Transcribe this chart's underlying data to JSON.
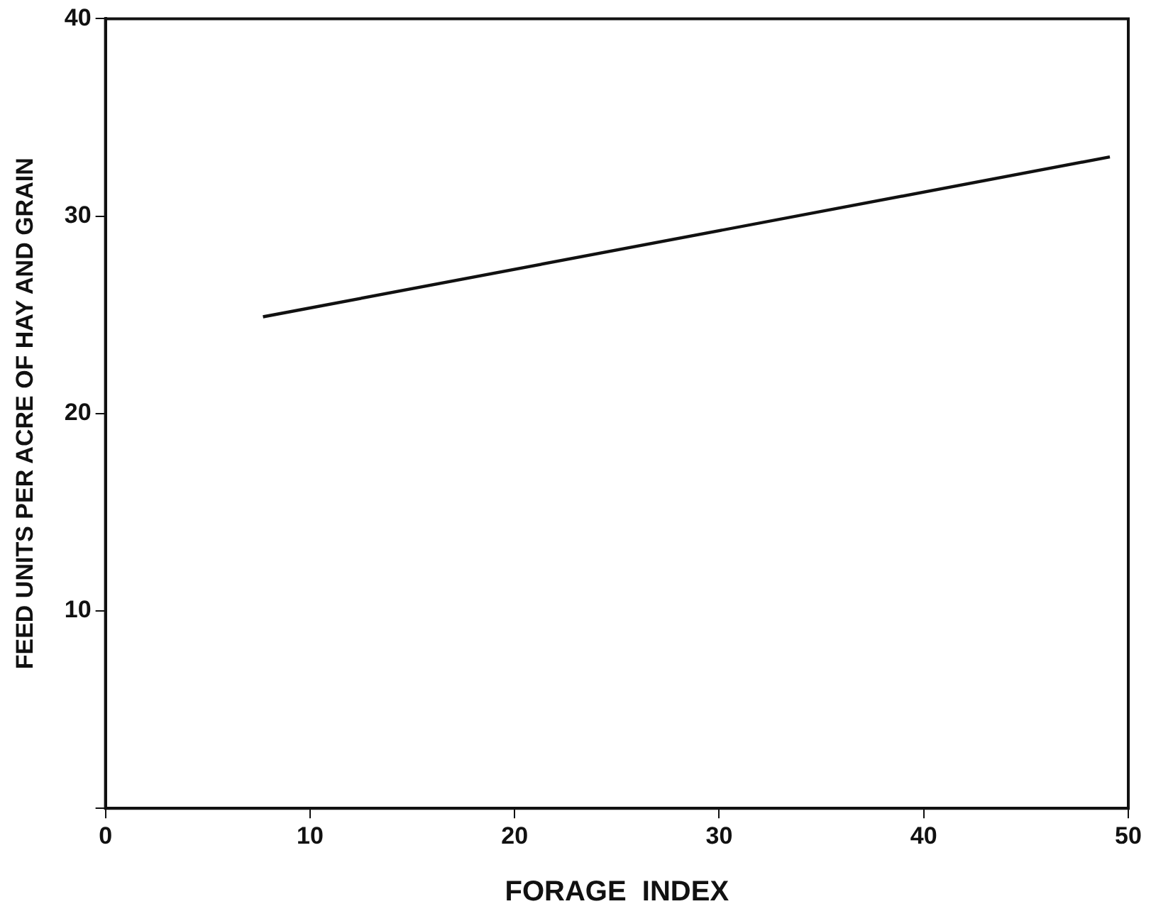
{
  "chart_data": {
    "type": "line",
    "xlabel": "FORAGE  INDEX",
    "ylabel": "FEED UNITS PER ACRE OF HAY AND GRAIN",
    "x": [
      7.7,
      49.1
    ],
    "series": [
      {
        "color": "#111111",
        "values": [
          24.9,
          33.0
        ]
      }
    ],
    "xlim": [
      0,
      50
    ],
    "xticks": [
      0,
      10,
      20,
      30,
      40,
      50
    ],
    "ylim": [
      0,
      40
    ],
    "yticks": [
      {
        "value": 0,
        "label": null
      },
      10,
      20,
      30,
      40
    ],
    "grid": false,
    "legend": false,
    "marker": "none",
    "line_style": "solid"
  }
}
